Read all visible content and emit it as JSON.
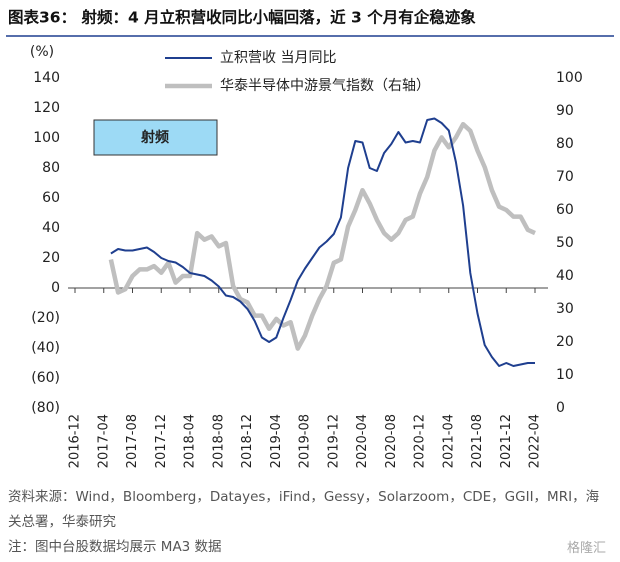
{
  "chart_data": {
    "type": "line",
    "title": "图表36：  射频：4 月立积营收同比小幅回落，近 3 个月有企稳迹象",
    "ylabel": "(%)",
    "annotation": "射频",
    "source": "资料来源：Wind，Bloomberg，Datayes，iFind，Gessy，Solarzoom，CDE，GGII，MRI，海关总署，华泰研究",
    "note": "注：图中台股数据均展示 MA3 数据",
    "watermark": "格隆汇",
    "categories": [
      "2016-12",
      null,
      null,
      null,
      "2017-04",
      null,
      null,
      null,
      "2017-08",
      null,
      null,
      null,
      "2017-12",
      null,
      null,
      null,
      "2018-04",
      null,
      null,
      null,
      "2018-08",
      null,
      null,
      null,
      "2018-12",
      null,
      null,
      null,
      "2019-04",
      null,
      null,
      null,
      "2019-08",
      null,
      null,
      null,
      "2019-12",
      null,
      null,
      null,
      "2020-04",
      null,
      null,
      null,
      "2020-08",
      null,
      null,
      null,
      "2020-12",
      null,
      null,
      null,
      "2021-04",
      null,
      null,
      null,
      "2021-08",
      null,
      null,
      null,
      "2021-12",
      null,
      null,
      null,
      "2022-04"
    ],
    "series": [
      {
        "name": "立积营收 当月同比",
        "color": "#1f3f8f",
        "axis": "y",
        "values": [
          null,
          null,
          null,
          null,
          null,
          23,
          26,
          25,
          25,
          26,
          27,
          24,
          20,
          18,
          17,
          14,
          10,
          9,
          8,
          5,
          1,
          -5,
          -6,
          -9,
          -14,
          -22,
          -33,
          -36,
          -33,
          -20,
          -8,
          5,
          13,
          20,
          27,
          31,
          36,
          47,
          80,
          98,
          97,
          80,
          78,
          90,
          96,
          104,
          97,
          98,
          97,
          112,
          113,
          110,
          105,
          84,
          55,
          10,
          -17,
          -38,
          -46,
          -52,
          -50,
          -52,
          -51,
          -50,
          -50
        ]
      },
      {
        "name": "华泰半导体中游景气指数（右轴）",
        "color": "#bfbfbf",
        "axis": "y2",
        "values": [
          null,
          null,
          null,
          null,
          null,
          45,
          35,
          36,
          40,
          42,
          42,
          43,
          41,
          44,
          38,
          40,
          40,
          53,
          51,
          52,
          49,
          50,
          37,
          33,
          32,
          28,
          28,
          24,
          27,
          25,
          26,
          18,
          22,
          28,
          33,
          37,
          44,
          45,
          55,
          60,
          66,
          62,
          57,
          53,
          51,
          53,
          57,
          58,
          65,
          70,
          78,
          82,
          79,
          82,
          86,
          84,
          78,
          73,
          66,
          61,
          60,
          58,
          58,
          54,
          53
        ]
      }
    ],
    "ylim": [
      -80,
      140
    ],
    "yticks": [
      {
        "value": -80,
        "label": "(80)"
      },
      {
        "value": -60,
        "label": "(60)"
      },
      {
        "value": -40,
        "label": "(40)"
      },
      {
        "value": -20,
        "label": "(20)"
      },
      0,
      20,
      40,
      60,
      80,
      100,
      120,
      140
    ],
    "y2lim": [
      0,
      100
    ],
    "y2ticks": [
      0,
      10,
      20,
      30,
      40,
      50,
      60,
      70,
      80,
      90,
      100
    ],
    "legend": "top"
  }
}
